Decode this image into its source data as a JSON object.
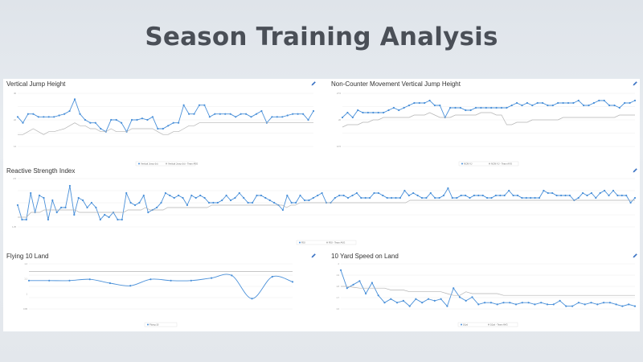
{
  "slide": {
    "title": "Season Training Analysis"
  },
  "colors": {
    "primary": "#4a90d9",
    "baseline": "#b4b4b4",
    "edit": "#3b73c4"
  },
  "icons": {
    "edit": "pencil-icon"
  },
  "chart_data": [
    {
      "id": "vjh",
      "type": "line",
      "title": "Vertical Jump Height",
      "xlabel": "",
      "ylabel": "",
      "ylim": [
        12,
        30
      ],
      "yticks": [
        "30",
        "22",
        "14"
      ],
      "legend": {
        "position": "bottom-center",
        "entries": [
          "Vertical Jump (in)",
          "Vertical Jump (in) - Team AVG"
        ]
      },
      "series": [
        {
          "values": [
            22,
            20,
            23,
            23,
            22,
            22,
            22,
            22,
            22.5,
            23,
            24,
            28,
            23,
            21,
            20,
            20,
            18,
            17,
            21,
            21,
            20,
            17,
            21,
            21,
            21.5,
            21,
            22,
            18,
            18,
            19,
            20,
            20,
            26,
            23,
            23,
            26,
            26,
            22,
            23,
            23,
            23,
            23,
            22,
            23,
            23,
            22,
            23,
            24,
            20,
            22,
            22,
            22,
            22.5,
            23,
            23,
            23,
            21,
            24
          ]
        },
        {
          "values": [
            16,
            16,
            17,
            18,
            17,
            16,
            17,
            17,
            17.5,
            18,
            19,
            20,
            19,
            19,
            18,
            18,
            17,
            17,
            18,
            17,
            17,
            17,
            18,
            18,
            18,
            18,
            18,
            17,
            16,
            16,
            17,
            17,
            18,
            19,
            19,
            20,
            20,
            20,
            20,
            20,
            20,
            20,
            20,
            20,
            20,
            20,
            20,
            20,
            20,
            20,
            20,
            20,
            20,
            20,
            20,
            20,
            20,
            20
          ]
        }
      ]
    },
    {
      "id": "ncm",
      "type": "line",
      "title": "Non-Counter Movement Vertical Jump Height",
      "xlabel": "",
      "ylabel": "",
      "ylim": [
        8,
        30
      ],
      "yticks": [
        "27.5",
        "20",
        "12.5"
      ],
      "legend": {
        "position": "bottom-center",
        "entries": [
          "NCM VJ",
          "NCM VJ - Team AVG"
        ]
      },
      "series": [
        {
          "values": [
            20,
            22,
            20,
            23,
            22,
            22,
            22,
            22,
            22,
            23,
            24,
            23,
            24,
            25,
            26,
            26,
            26,
            27,
            25,
            25,
            20,
            24,
            24,
            24,
            23,
            23,
            24,
            24,
            24,
            24,
            24,
            24,
            24,
            25,
            26,
            25,
            26,
            25,
            26,
            26,
            25,
            25,
            26,
            26,
            26,
            26,
            27,
            25,
            25,
            26,
            27,
            27,
            25,
            25,
            24,
            26,
            26,
            27
          ]
        },
        {
          "values": [
            16,
            17,
            17,
            17,
            18,
            18,
            19,
            19,
            20,
            20,
            20,
            20,
            20,
            20,
            21,
            21,
            21,
            22,
            21,
            20,
            20,
            20,
            21,
            21,
            21,
            21,
            21,
            22,
            22,
            22,
            21,
            21,
            17,
            17,
            18,
            18,
            18,
            19,
            19,
            19,
            19,
            19,
            19,
            20,
            20,
            20,
            20,
            20,
            20,
            20,
            20,
            20,
            20,
            20,
            21,
            21,
            21,
            21
          ]
        }
      ]
    },
    {
      "id": "rsi",
      "type": "line",
      "title": "Reactive Strength Index",
      "xlabel": "",
      "ylabel": "",
      "ylim": [
        1.0,
        3.0
      ],
      "yticks": [
        "2.5",
        "1.25"
      ],
      "legend": {
        "position": "bottom-center",
        "entries": [
          "RSI",
          "RSI - Team AVG"
        ]
      },
      "series": [
        {
          "values": [
            1.9,
            1.3,
            1.3,
            2.4,
            1.6,
            2.3,
            2.2,
            1.3,
            2.1,
            1.6,
            1.8,
            1.8,
            2.7,
            1.5,
            2.2,
            2.1,
            1.8,
            2.0,
            1.8,
            1.3,
            1.5,
            1.4,
            1.6,
            1.3,
            1.3,
            2.4,
            2.0,
            1.9,
            2.0,
            2.3,
            1.6,
            1.7,
            1.8,
            2.0,
            2.4,
            2.3,
            2.2,
            2.3,
            2.2,
            1.9,
            2.3,
            2.2,
            2.3,
            2.2,
            2.0,
            2.0,
            2.0,
            2.1,
            2.3,
            2.1,
            2.2,
            2.4,
            2.2,
            2.0,
            2.0,
            2.3,
            2.3,
            2.2,
            2.1,
            2.0,
            1.9,
            1.7,
            2.3,
            2.0,
            2.0,
            2.3,
            2.1,
            2.1,
            2.2,
            2.3,
            2.4,
            2.0,
            2.0,
            2.2,
            2.3,
            2.3,
            2.2,
            2.3,
            2.4,
            2.2,
            2.2,
            2.2,
            2.4,
            2.4,
            2.3,
            2.2,
            2.2,
            2.2,
            2.2,
            2.5,
            2.3,
            2.4,
            2.3,
            2.2,
            2.2,
            2.4,
            2.2,
            2.2,
            2.3,
            2.6,
            2.2,
            2.2,
            2.3,
            2.3,
            2.2,
            2.3,
            2.3,
            2.3,
            2.2,
            2.2,
            2.3,
            2.3,
            2.3,
            2.5,
            2.3,
            2.3,
            2.2,
            2.2,
            2.2,
            2.2,
            2.2,
            2.5,
            2.4,
            2.4,
            2.3,
            2.3,
            2.3,
            2.3,
            2.1,
            2.2,
            2.4,
            2.3,
            2.4,
            2.2,
            2.4,
            2.5,
            2.3,
            2.5,
            2.3,
            2.3,
            2.3,
            2.0,
            2.2
          ]
        },
        {
          "values": [
            1.4,
            1.4,
            1.4,
            1.6,
            1.6,
            1.6,
            1.7,
            1.7,
            1.7,
            1.7,
            1.7,
            1.7,
            1.7,
            1.7,
            1.6,
            1.6,
            1.6,
            1.6,
            1.6,
            1.6,
            1.6,
            1.6,
            1.6,
            1.6,
            1.6,
            1.7,
            1.7,
            1.7,
            1.7,
            1.8,
            1.7,
            1.7,
            1.7,
            1.7,
            1.8,
            1.8,
            1.8,
            1.8,
            1.8,
            1.8,
            1.8,
            1.8,
            1.8,
            1.8,
            1.9,
            1.9,
            1.9,
            1.9,
            1.9,
            1.9,
            1.9,
            1.9,
            1.9,
            1.9,
            1.9,
            1.9,
            1.9,
            1.9,
            1.9,
            1.9,
            1.9,
            1.8,
            1.9,
            1.9,
            2.0,
            2.0,
            2.0,
            2.0,
            2.0,
            2.0,
            2.0,
            2.0,
            2.0,
            2.0,
            2.0,
            2.0,
            2.0,
            2.0,
            2.0,
            2.0,
            2.0,
            2.0,
            2.0,
            2.0,
            2.0,
            2.0,
            2.0,
            2.0,
            2.0,
            2.1,
            2.1,
            2.1,
            2.1,
            2.1,
            2.1,
            2.1,
            2.1,
            2.1,
            2.1,
            2.1,
            2.1,
            2.1,
            2.1,
            2.1,
            2.1,
            2.1,
            2.1,
            2.1,
            2.1,
            2.1,
            2.1,
            2.1,
            2.1,
            2.1,
            2.1,
            2.1,
            2.1,
            2.1,
            2.1,
            2.1,
            2.1,
            2.1,
            2.1,
            2.1,
            2.1,
            2.1,
            2.1,
            2.1,
            2.1,
            2.1,
            2.1,
            2.1,
            2.1,
            2.1,
            2.1,
            2.1,
            2.1,
            2.1,
            2.1,
            2.1,
            2.1
          ]
        }
      ]
    },
    {
      "id": "f10",
      "type": "line",
      "title": "Flying 10 Land",
      "xlabel": "",
      "ylabel": "",
      "ylim": [
        0.9,
        1.25
      ],
      "yticks": [
        "1.2",
        "1.1",
        "1",
        "0.95"
      ],
      "legend": {
        "position": "bottom-center",
        "entries": [
          "Flying 10"
        ]
      },
      "series": [
        {
          "values": [
            1.12,
            1.12,
            1.12,
            1.13,
            1.1,
            1.08,
            1.13,
            1.12,
            1.12,
            1.14,
            1.16,
            0.98,
            1.15,
            1.11
          ]
        },
        {
          "values": [
            1.19,
            1.19,
            1.19,
            1.19,
            1.19,
            1.19,
            1.19,
            1.19,
            1.19,
            1.19,
            1.19,
            1.19,
            1.19,
            1.19
          ]
        }
      ]
    },
    {
      "id": "y10",
      "type": "line",
      "title": "10 Yard Speed on Land",
      "xlabel": "",
      "ylabel": "",
      "ylim": [
        1.55,
        2.05
      ],
      "yticks": [
        "2",
        "1.9",
        "1.8",
        "1.7",
        "1.6"
      ],
      "legend": {
        "position": "bottom-center",
        "entries": [
          "10yd",
          "10yd - Team AVG"
        ]
      },
      "series": [
        {
          "values": [
            1.98,
            1.78,
            1.82,
            1.86,
            1.72,
            1.84,
            1.7,
            1.62,
            1.66,
            1.62,
            1.64,
            1.58,
            1.66,
            1.62,
            1.66,
            1.64,
            1.66,
            1.58,
            1.78,
            1.68,
            1.64,
            1.68,
            1.6,
            1.62,
            1.62,
            1.6,
            1.62,
            1.62,
            1.6,
            1.62,
            1.62,
            1.6,
            1.62,
            1.6,
            1.6,
            1.64,
            1.58,
            1.58,
            1.62,
            1.6,
            1.62,
            1.6,
            1.62,
            1.62,
            1.6,
            1.58,
            1.6,
            1.58
          ]
        },
        {
          "values": [
            1.8,
            1.8,
            1.79,
            1.78,
            1.78,
            1.78,
            1.78,
            1.78,
            1.76,
            1.76,
            1.76,
            1.74,
            1.74,
            1.74,
            1.74,
            1.74,
            1.74,
            1.72,
            1.7,
            1.7,
            1.74,
            1.72,
            1.72,
            1.72,
            1.72,
            1.72,
            1.7,
            1.7,
            1.7,
            1.7,
            1.7,
            1.7,
            1.7,
            1.7,
            1.7,
            1.7,
            1.7,
            1.7,
            1.7,
            1.7,
            1.7,
            1.7,
            1.7,
            1.7,
            1.7,
            1.7,
            1.7,
            1.7
          ]
        }
      ]
    }
  ]
}
